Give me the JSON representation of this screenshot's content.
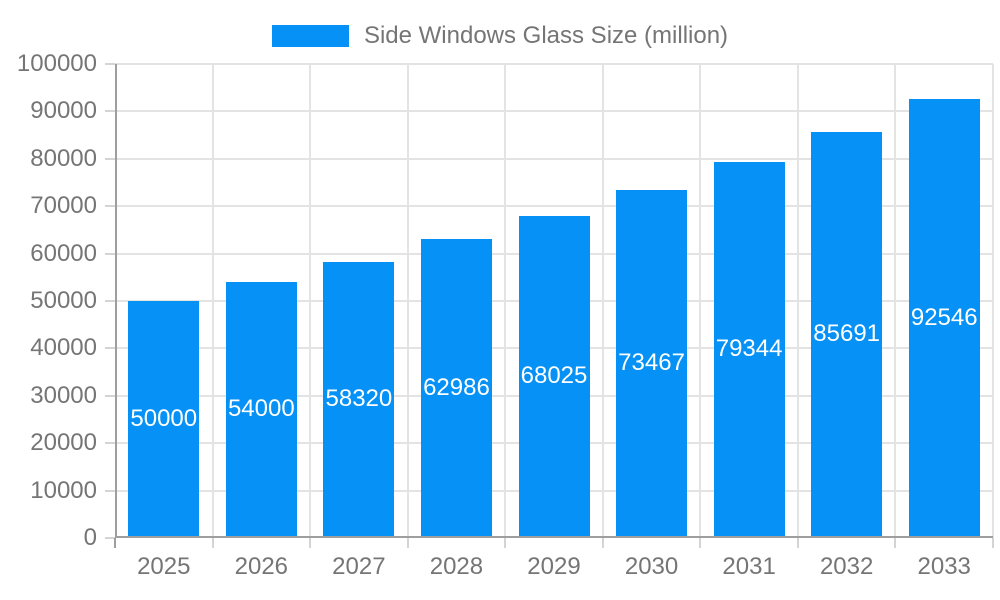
{
  "chart_data": {
    "type": "bar",
    "title": "Side Windows Glass Size (million)",
    "legend": [
      "Side Windows Glass Size (million)"
    ],
    "legend_position": "top",
    "categories": [
      "2025",
      "2026",
      "2027",
      "2028",
      "2029",
      "2030",
      "2031",
      "2032",
      "2033"
    ],
    "values": [
      50000,
      54000,
      58320,
      62986,
      68025,
      73467,
      79344,
      85691,
      92546
    ],
    "value_labels": [
      "50000",
      "54000",
      "58320",
      "62986",
      "68025",
      "73467",
      "79344",
      "85691",
      "92546"
    ],
    "value_label_position": "inside-center",
    "xlabel": "",
    "ylabel": "",
    "ylim": [
      0,
      100000
    ],
    "yticks": [
      0,
      10000,
      20000,
      30000,
      40000,
      50000,
      60000,
      70000,
      80000,
      90000,
      100000
    ],
    "ytick_labels": [
      "0",
      "10000",
      "20000",
      "30000",
      "40000",
      "50000",
      "60000",
      "70000",
      "80000",
      "90000",
      "100000"
    ],
    "grid": true
  },
  "colors": {
    "bar": "#0591f5",
    "bar_label": "#ffffff",
    "grid": "#e3e3e3",
    "tick": "#d4d4d4",
    "axis": "#9e9e9e",
    "label_text": "#757575",
    "background": "#ffffff"
  }
}
